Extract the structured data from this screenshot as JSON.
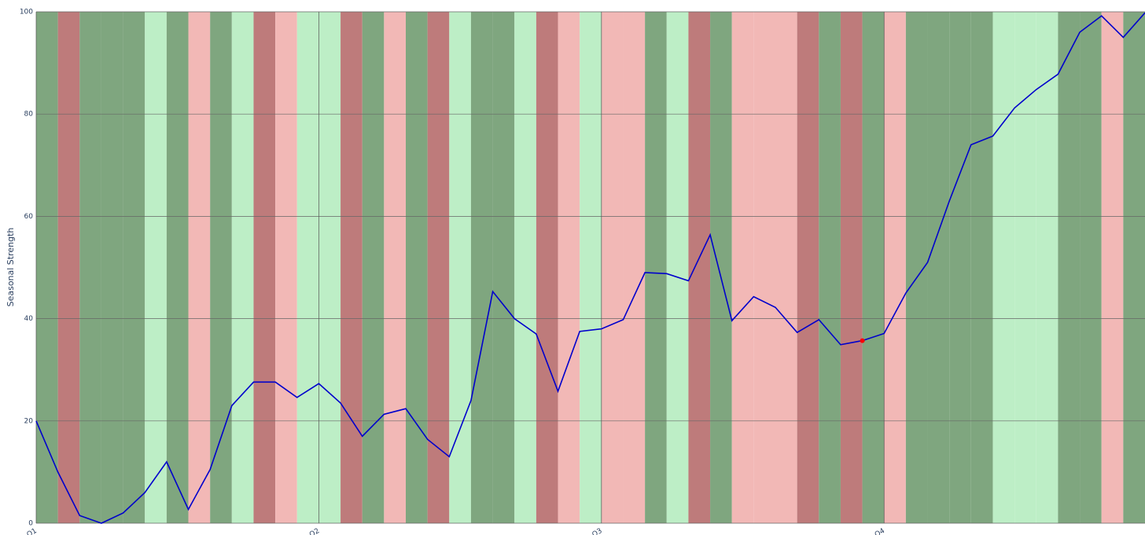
{
  "chart_data": {
    "type": "line",
    "y_label": "Seasonal Strength",
    "x": [
      0,
      1,
      2,
      3,
      4,
      5,
      6,
      7,
      8,
      9,
      10,
      11,
      12,
      13,
      14,
      15,
      16,
      17,
      18,
      19,
      20,
      21,
      22,
      23,
      24,
      25,
      26,
      27,
      28,
      29,
      30,
      31,
      32,
      33,
      34,
      35,
      36,
      37,
      38,
      39,
      40,
      41,
      42,
      43,
      44,
      45,
      46,
      47,
      48,
      49,
      50,
      51
    ],
    "series": [
      {
        "color": "#0000cc",
        "values": [
          20,
          10,
          1.5,
          0,
          2,
          6,
          12,
          2.7,
          10.5,
          23,
          27.6,
          27.6,
          24.6,
          27.3,
          23.5,
          17,
          21.3,
          22.4,
          16.4,
          13,
          24,
          45.3,
          40,
          37,
          25.8,
          37.5,
          38,
          39.8,
          49,
          48.8,
          47.4,
          56.4,
          39.6,
          44.3,
          42.2,
          37.3,
          39.8,
          34.9,
          35.7,
          37.1,
          45,
          51,
          63,
          74,
          75.7,
          81.2,
          84.8,
          87.8,
          96,
          99.2,
          95,
          99.8
        ]
      }
    ],
    "highlight_index": 38,
    "highlight_color": "#ff0000",
    "band_colors": [
      "#7fa67f",
      "#be7b7b",
      "#7fa67f",
      "#7fa67f",
      "#7fa67f",
      "#bdeec6",
      "#7fa67f",
      "#f2b8b6",
      "#7fa67f",
      "#bdeec6",
      "#be7b7b",
      "#f2b8b6",
      "#bdeec6",
      "#bdeec6",
      "#be7b7b",
      "#7fa67f",
      "#f2b8b6",
      "#7fa67f",
      "#be7b7b",
      "#bdeec6",
      "#7fa67f",
      "#7fa67f",
      "#bdeec6",
      "#be7b7b",
      "#f2b8b6",
      "#bdeec6",
      "#f2b8b6",
      "#f2b8b6",
      "#7fa67f",
      "#bdeec6",
      "#be7b7b",
      "#7fa67f",
      "#f2b8b6",
      "#f2b8b6",
      "#f2b8b6",
      "#be7b7b",
      "#7fa67f",
      "#be7b7b",
      "#7fa67f",
      "#f2b8b6",
      "#7fa67f",
      "#7fa67f",
      "#7fa67f",
      "#7fa67f",
      "#bdeec6",
      "#bdeec6",
      "#bdeec6",
      "#7fa67f",
      "#7fa67f",
      "#f2b8b6",
      "#7fa67f"
    ],
    "xlim": [
      0,
      51
    ],
    "xticks": [
      {
        "value": 0,
        "label": "Q1"
      },
      {
        "value": 13,
        "label": "Q2"
      },
      {
        "value": 26,
        "label": "Q3"
      },
      {
        "value": 39,
        "label": "Q4"
      }
    ],
    "ylim": [
      0,
      100
    ],
    "yticks": [
      0,
      20,
      40,
      60,
      80,
      100
    ],
    "grid": true
  }
}
